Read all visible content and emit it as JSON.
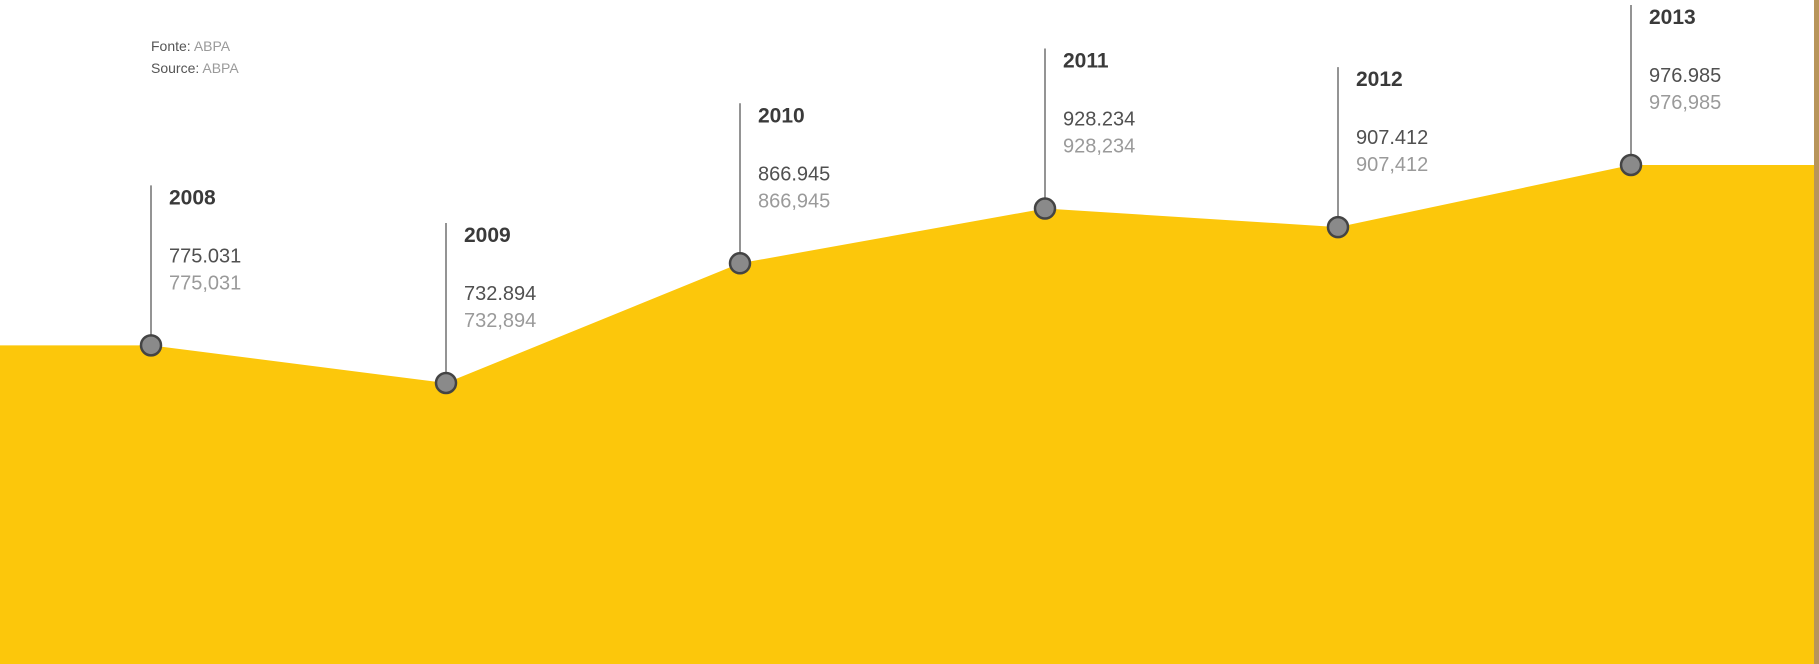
{
  "source": {
    "pt_label": "Fonte:",
    "pt_value": "ABPA",
    "en_label": "Source:",
    "en_value": "ABPA"
  },
  "colors": {
    "area": "#FCC70B",
    "marker_fill": "#8A8A8A",
    "marker_stroke": "#444444",
    "leader_line": "#707070",
    "right_edge": "#B8955A"
  },
  "chart_data": {
    "type": "area",
    "x": [
      "2008",
      "2009",
      "2010",
      "2011",
      "2012",
      "2013"
    ],
    "values": [
      775031,
      732894,
      866945,
      928234,
      907412,
      976985
    ],
    "labels_pt": [
      "775.031",
      "732.894",
      "866.945",
      "928.234",
      "907.412",
      "976.985"
    ],
    "labels_en": [
      "775,031",
      "732,894",
      "866,945",
      "928,234",
      "907,412",
      "976,985"
    ]
  }
}
